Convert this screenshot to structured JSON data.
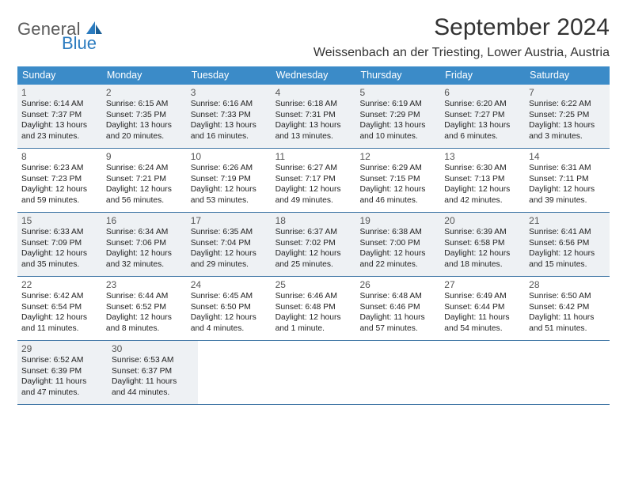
{
  "brand": {
    "name_part1": "General",
    "name_part2": "Blue"
  },
  "title": "September 2024",
  "location": "Weissenbach an der Triesting, Lower Austria, Austria",
  "colors": {
    "header_bg": "#3b8bc8",
    "header_text": "#ffffff",
    "divider": "#4177a6",
    "shaded_bg": "#eef1f4",
    "body_text": "#222222",
    "daynum_text": "#555555",
    "brand_gray": "#5a5a5a",
    "brand_blue": "#2b7bbf"
  },
  "fonts": {
    "month_title_pt": 30,
    "location_pt": 16,
    "weekday_pt": 12.5,
    "daynum_pt": 12,
    "body_pt": 10.3
  },
  "weekdays": [
    "Sunday",
    "Monday",
    "Tuesday",
    "Wednesday",
    "Thursday",
    "Friday",
    "Saturday"
  ],
  "weeks": [
    {
      "shaded": true,
      "days": [
        {
          "n": "1",
          "sunrise": "Sunrise: 6:14 AM",
          "sunset": "Sunset: 7:37 PM",
          "day1": "Daylight: 13 hours",
          "day2": "and 23 minutes."
        },
        {
          "n": "2",
          "sunrise": "Sunrise: 6:15 AM",
          "sunset": "Sunset: 7:35 PM",
          "day1": "Daylight: 13 hours",
          "day2": "and 20 minutes."
        },
        {
          "n": "3",
          "sunrise": "Sunrise: 6:16 AM",
          "sunset": "Sunset: 7:33 PM",
          "day1": "Daylight: 13 hours",
          "day2": "and 16 minutes."
        },
        {
          "n": "4",
          "sunrise": "Sunrise: 6:18 AM",
          "sunset": "Sunset: 7:31 PM",
          "day1": "Daylight: 13 hours",
          "day2": "and 13 minutes."
        },
        {
          "n": "5",
          "sunrise": "Sunrise: 6:19 AM",
          "sunset": "Sunset: 7:29 PM",
          "day1": "Daylight: 13 hours",
          "day2": "and 10 minutes."
        },
        {
          "n": "6",
          "sunrise": "Sunrise: 6:20 AM",
          "sunset": "Sunset: 7:27 PM",
          "day1": "Daylight: 13 hours",
          "day2": "and 6 minutes."
        },
        {
          "n": "7",
          "sunrise": "Sunrise: 6:22 AM",
          "sunset": "Sunset: 7:25 PM",
          "day1": "Daylight: 13 hours",
          "day2": "and 3 minutes."
        }
      ]
    },
    {
      "shaded": false,
      "days": [
        {
          "n": "8",
          "sunrise": "Sunrise: 6:23 AM",
          "sunset": "Sunset: 7:23 PM",
          "day1": "Daylight: 12 hours",
          "day2": "and 59 minutes."
        },
        {
          "n": "9",
          "sunrise": "Sunrise: 6:24 AM",
          "sunset": "Sunset: 7:21 PM",
          "day1": "Daylight: 12 hours",
          "day2": "and 56 minutes."
        },
        {
          "n": "10",
          "sunrise": "Sunrise: 6:26 AM",
          "sunset": "Sunset: 7:19 PM",
          "day1": "Daylight: 12 hours",
          "day2": "and 53 minutes."
        },
        {
          "n": "11",
          "sunrise": "Sunrise: 6:27 AM",
          "sunset": "Sunset: 7:17 PM",
          "day1": "Daylight: 12 hours",
          "day2": "and 49 minutes."
        },
        {
          "n": "12",
          "sunrise": "Sunrise: 6:29 AM",
          "sunset": "Sunset: 7:15 PM",
          "day1": "Daylight: 12 hours",
          "day2": "and 46 minutes."
        },
        {
          "n": "13",
          "sunrise": "Sunrise: 6:30 AM",
          "sunset": "Sunset: 7:13 PM",
          "day1": "Daylight: 12 hours",
          "day2": "and 42 minutes."
        },
        {
          "n": "14",
          "sunrise": "Sunrise: 6:31 AM",
          "sunset": "Sunset: 7:11 PM",
          "day1": "Daylight: 12 hours",
          "day2": "and 39 minutes."
        }
      ]
    },
    {
      "shaded": true,
      "days": [
        {
          "n": "15",
          "sunrise": "Sunrise: 6:33 AM",
          "sunset": "Sunset: 7:09 PM",
          "day1": "Daylight: 12 hours",
          "day2": "and 35 minutes."
        },
        {
          "n": "16",
          "sunrise": "Sunrise: 6:34 AM",
          "sunset": "Sunset: 7:06 PM",
          "day1": "Daylight: 12 hours",
          "day2": "and 32 minutes."
        },
        {
          "n": "17",
          "sunrise": "Sunrise: 6:35 AM",
          "sunset": "Sunset: 7:04 PM",
          "day1": "Daylight: 12 hours",
          "day2": "and 29 minutes."
        },
        {
          "n": "18",
          "sunrise": "Sunrise: 6:37 AM",
          "sunset": "Sunset: 7:02 PM",
          "day1": "Daylight: 12 hours",
          "day2": "and 25 minutes."
        },
        {
          "n": "19",
          "sunrise": "Sunrise: 6:38 AM",
          "sunset": "Sunset: 7:00 PM",
          "day1": "Daylight: 12 hours",
          "day2": "and 22 minutes."
        },
        {
          "n": "20",
          "sunrise": "Sunrise: 6:39 AM",
          "sunset": "Sunset: 6:58 PM",
          "day1": "Daylight: 12 hours",
          "day2": "and 18 minutes."
        },
        {
          "n": "21",
          "sunrise": "Sunrise: 6:41 AM",
          "sunset": "Sunset: 6:56 PM",
          "day1": "Daylight: 12 hours",
          "day2": "and 15 minutes."
        }
      ]
    },
    {
      "shaded": false,
      "days": [
        {
          "n": "22",
          "sunrise": "Sunrise: 6:42 AM",
          "sunset": "Sunset: 6:54 PM",
          "day1": "Daylight: 12 hours",
          "day2": "and 11 minutes."
        },
        {
          "n": "23",
          "sunrise": "Sunrise: 6:44 AM",
          "sunset": "Sunset: 6:52 PM",
          "day1": "Daylight: 12 hours",
          "day2": "and 8 minutes."
        },
        {
          "n": "24",
          "sunrise": "Sunrise: 6:45 AM",
          "sunset": "Sunset: 6:50 PM",
          "day1": "Daylight: 12 hours",
          "day2": "and 4 minutes."
        },
        {
          "n": "25",
          "sunrise": "Sunrise: 6:46 AM",
          "sunset": "Sunset: 6:48 PM",
          "day1": "Daylight: 12 hours",
          "day2": "and 1 minute."
        },
        {
          "n": "26",
          "sunrise": "Sunrise: 6:48 AM",
          "sunset": "Sunset: 6:46 PM",
          "day1": "Daylight: 11 hours",
          "day2": "and 57 minutes."
        },
        {
          "n": "27",
          "sunrise": "Sunrise: 6:49 AM",
          "sunset": "Sunset: 6:44 PM",
          "day1": "Daylight: 11 hours",
          "day2": "and 54 minutes."
        },
        {
          "n": "28",
          "sunrise": "Sunrise: 6:50 AM",
          "sunset": "Sunset: 6:42 PM",
          "day1": "Daylight: 11 hours",
          "day2": "and 51 minutes."
        }
      ]
    },
    {
      "shaded": true,
      "days": [
        {
          "n": "29",
          "sunrise": "Sunrise: 6:52 AM",
          "sunset": "Sunset: 6:39 PM",
          "day1": "Daylight: 11 hours",
          "day2": "and 47 minutes."
        },
        {
          "n": "30",
          "sunrise": "Sunrise: 6:53 AM",
          "sunset": "Sunset: 6:37 PM",
          "day1": "Daylight: 11 hours",
          "day2": "and 44 minutes."
        },
        null,
        null,
        null,
        null,
        null
      ]
    }
  ]
}
